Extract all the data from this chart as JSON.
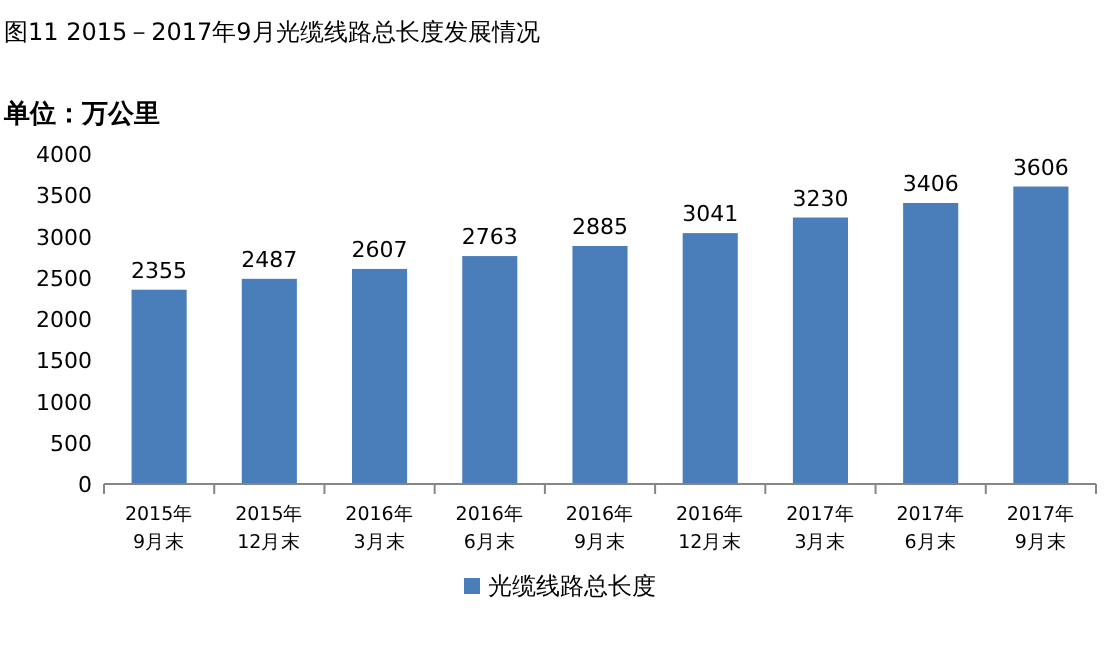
{
  "chart_data": {
    "type": "bar",
    "title": "图11 2015－2017年9月光缆线路总长度发展情况",
    "ylabel": "单位：万公里",
    "categories": [
      "2015年\n9月末",
      "2015年\n12月末",
      "2016年\n3月末",
      "2016年\n6月末",
      "2016年\n9月末",
      "2016年\n12月末",
      "2017年\n3月末",
      "2017年\n6月末",
      "2017年\n9月末"
    ],
    "series": [
      {
        "name": "光缆线路总长度",
        "color": "#4a7ebb",
        "values": [
          2355,
          2487,
          2607,
          2763,
          2885,
          3041,
          3230,
          3406,
          3606
        ]
      }
    ],
    "ylim": [
      0,
      4000
    ],
    "yticks": [
      0,
      500,
      1000,
      1500,
      2000,
      2500,
      3000,
      3500,
      4000
    ],
    "data_labels": true,
    "legend": "bottom",
    "grid": false
  }
}
